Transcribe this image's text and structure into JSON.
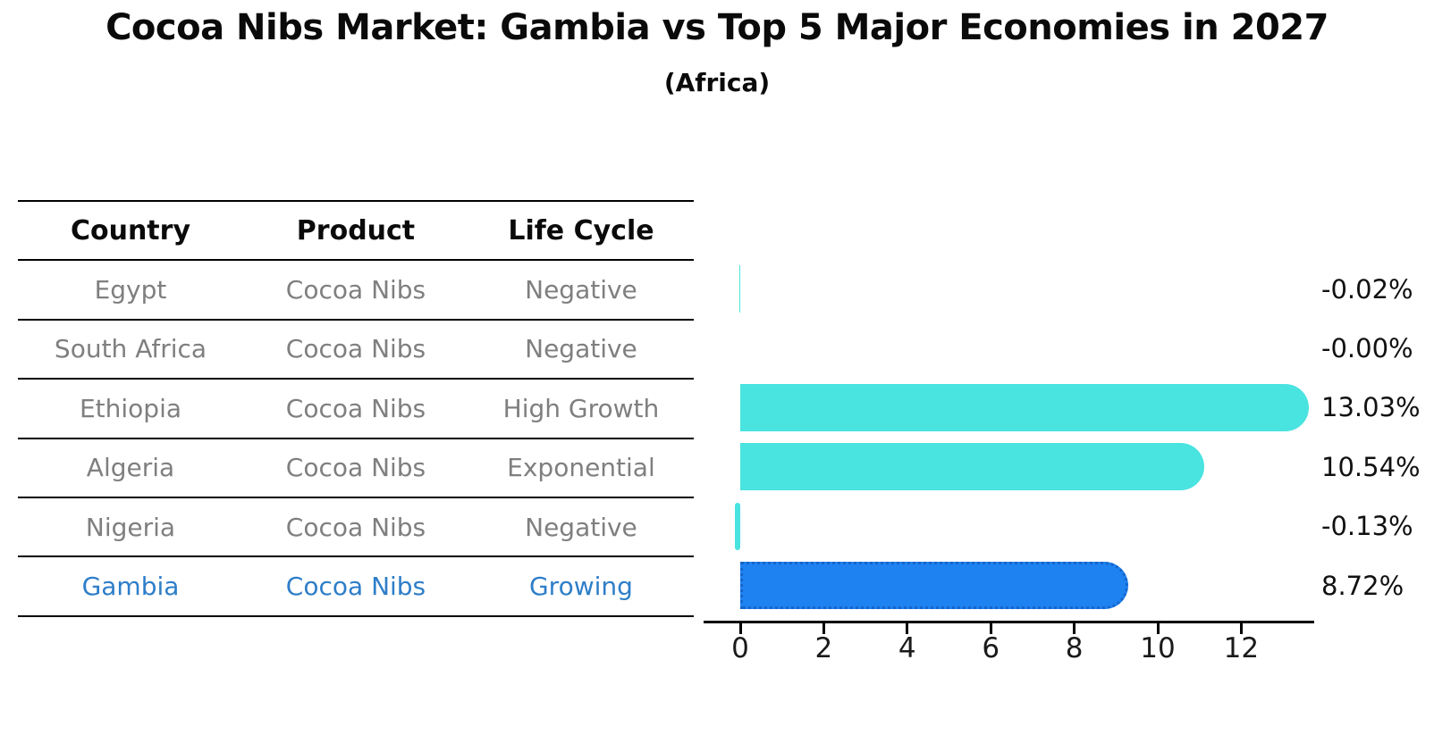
{
  "title": "Cocoa Nibs Market: Gambia vs Top 5 Major Economies in 2027",
  "subtitle": "(Africa)",
  "table": {
    "headers": [
      "Country",
      "Product",
      "Life Cycle"
    ],
    "rows": [
      {
        "country": "Egypt",
        "product": "Cocoa Nibs",
        "life_cycle": "Negative",
        "highlight": false
      },
      {
        "country": "South Africa",
        "product": "Cocoa Nibs",
        "life_cycle": "Negative",
        "highlight": false
      },
      {
        "country": "Ethiopia",
        "product": "Cocoa Nibs",
        "life_cycle": "High Growth",
        "highlight": false
      },
      {
        "country": "Algeria",
        "product": "Cocoa Nibs",
        "life_cycle": "Exponential",
        "highlight": false
      },
      {
        "country": "Nigeria",
        "product": "Cocoa Nibs",
        "life_cycle": "Negative",
        "highlight": false
      },
      {
        "country": "Gambia",
        "product": "Cocoa Nibs",
        "life_cycle": "Growing",
        "highlight": true
      }
    ]
  },
  "chart_data": {
    "type": "bar",
    "orientation": "horizontal",
    "title": "Cocoa Nibs Market: Gambia vs Top 5 Major Economies in 2027",
    "subtitle": "(Africa)",
    "categories": [
      "Egypt",
      "South Africa",
      "Ethiopia",
      "Algeria",
      "Nigeria",
      "Gambia"
    ],
    "values": [
      -0.02,
      -0.0,
      13.03,
      10.54,
      -0.13,
      8.72
    ],
    "value_labels": [
      "-0.02%",
      "-0.00%",
      "13.03%",
      "10.54%",
      "-0.13%",
      "8.72%"
    ],
    "highlight_category": "Gambia",
    "x_ticks": [
      0,
      2,
      4,
      6,
      8,
      10,
      12
    ],
    "xlim": [
      -0.9,
      13.75
    ],
    "grid": false,
    "legend": "none",
    "colors": {
      "bar_default": "#49e3e0",
      "bar_highlight": "#1e82f0",
      "bar_highlight_border": "#1565cb",
      "highlight_text": "#2e7ec8",
      "table_text": "#7f7f7f",
      "header_text": "#0a0a0a",
      "axis": "#000000"
    }
  }
}
